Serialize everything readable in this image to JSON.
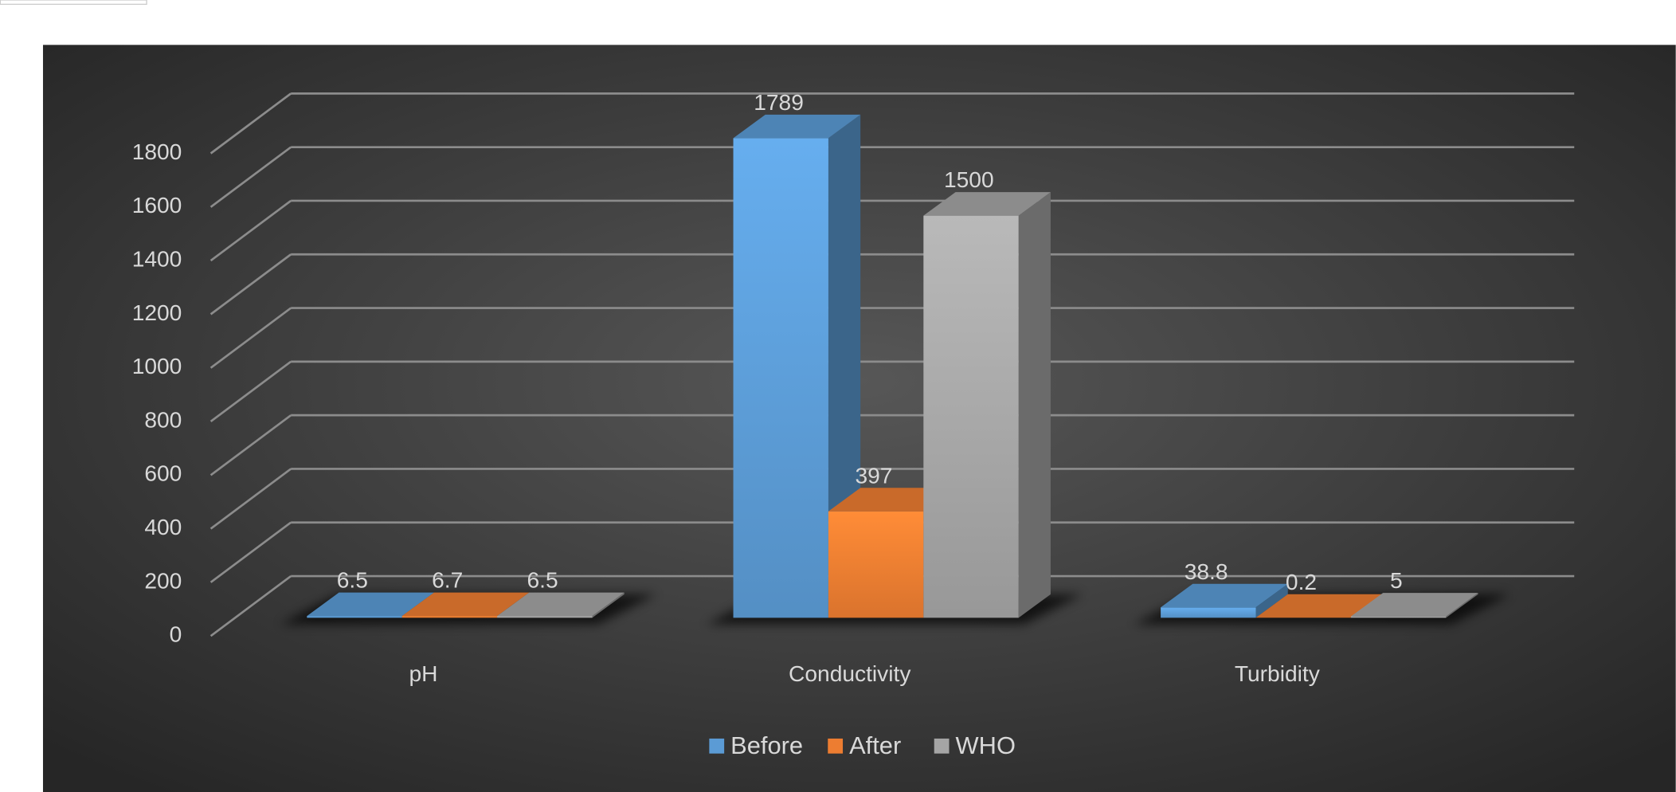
{
  "chart_data": {
    "type": "bar3d",
    "categories": [
      "pH",
      "Conductivity",
      "Turbidity"
    ],
    "series": [
      {
        "name": "Before",
        "color": "#5b9bd5",
        "values": [
          6.5,
          1789,
          38.8
        ]
      },
      {
        "name": "After",
        "color": "#ed7d31",
        "values": [
          6.7,
          397,
          0.2
        ]
      },
      {
        "name": "WHO",
        "color": "#a5a5a5",
        "values": [
          6.5,
          1500,
          5
        ]
      }
    ],
    "ylim": [
      0,
      1800
    ],
    "yticks": [
      0,
      200,
      400,
      600,
      800,
      1000,
      1200,
      1400,
      1600,
      1800
    ],
    "grid": true,
    "legend": "bottom"
  }
}
